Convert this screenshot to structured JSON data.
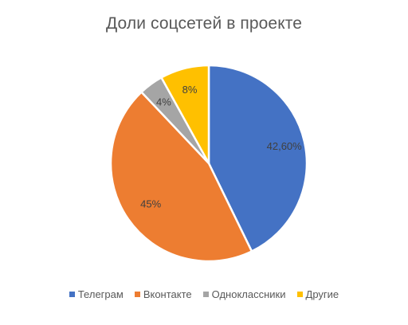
{
  "chart_data": {
    "type": "pie",
    "title": "Доли соцсетей в проекте",
    "categories": [
      "Телеграм",
      "Вконтакте",
      "Одноклассники",
      "Другие"
    ],
    "values": [
      42.6,
      45,
      4,
      8
    ],
    "data_labels": [
      "42,60%",
      "45%",
      "4%",
      "8%"
    ],
    "colors": [
      "#4472C4",
      "#ED7D31",
      "#A5A5A5",
      "#FFC000"
    ],
    "start_angle_deg": 0,
    "direction": "clockwise",
    "legend_position": "bottom"
  }
}
